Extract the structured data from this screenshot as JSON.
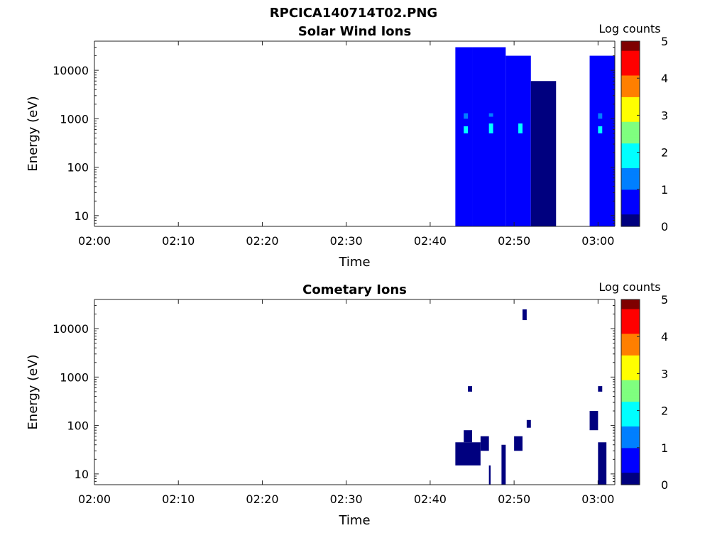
{
  "figure_title": "RPCICA140714T02.PNG",
  "colors": {
    "jet": [
      "#00007f",
      "#0000ff",
      "#007fff",
      "#00ffff",
      "#7fff7f",
      "#ffff00",
      "#ff7f00",
      "#ff0000",
      "#7f0000"
    ]
  },
  "chart_data": [
    {
      "type": "heatmap",
      "title": "Solar Wind Ions",
      "xlabel": "Time",
      "ylabel": "Energy (eV)",
      "yscale": "log",
      "ylim": [
        6,
        40000
      ],
      "xlim": [
        "02:00",
        "03:02"
      ],
      "x_ticks": [
        "02:00",
        "02:10",
        "02:20",
        "02:30",
        "02:40",
        "02:50",
        "03:00"
      ],
      "y_ticks": [
        10,
        100,
        1000,
        10000
      ],
      "y_tick_labels": [
        "10",
        "100",
        "1000",
        "10000"
      ],
      "colorbar": {
        "label": "Log counts",
        "min": 0,
        "max": 5,
        "ticks": [
          "0",
          "1",
          "2",
          "3",
          "4",
          "5"
        ]
      },
      "cells": [
        {
          "t0": "02:43",
          "t1": "02:45",
          "emin": 6,
          "emax": 30000,
          "value": 0.4
        },
        {
          "t0": "02:44",
          "t1": "02:44.5",
          "emin": 500,
          "emax": 700,
          "value": 1.8
        },
        {
          "t0": "02:44",
          "t1": "02:44.5",
          "emin": 1000,
          "emax": 1300,
          "value": 1.5
        },
        {
          "t0": "02:45",
          "t1": "02:49",
          "emin": 6,
          "emax": 30000,
          "value": 0.4
        },
        {
          "t0": "02:47",
          "t1": "02:47.5",
          "emin": 500,
          "emax": 800,
          "value": 2.0
        },
        {
          "t0": "02:47",
          "t1": "02:47.5",
          "emin": 1100,
          "emax": 1300,
          "value": 1.4
        },
        {
          "t0": "02:49",
          "t1": "02:52",
          "emin": 6,
          "emax": 20000,
          "value": 0.4
        },
        {
          "t0": "02:50.5",
          "t1": "02:51",
          "emin": 500,
          "emax": 800,
          "value": 1.6
        },
        {
          "t0": "02:52",
          "t1": "02:55",
          "emin": 6,
          "emax": 6000,
          "value": 0.1
        },
        {
          "t0": "02:59",
          "t1": "03:02",
          "emin": 6,
          "emax": 20000,
          "value": 0.4
        },
        {
          "t0": "03:00",
          "t1": "03:00.5",
          "emin": 500,
          "emax": 700,
          "value": 2.0
        },
        {
          "t0": "03:00",
          "t1": "03:00.5",
          "emin": 1000,
          "emax": 1300,
          "value": 1.3
        }
      ]
    },
    {
      "type": "heatmap",
      "title": "Cometary Ions",
      "xlabel": "Time",
      "ylabel": "Energy (eV)",
      "yscale": "log",
      "ylim": [
        6,
        40000
      ],
      "xlim": [
        "02:00",
        "03:02"
      ],
      "x_ticks": [
        "02:00",
        "02:10",
        "02:20",
        "02:30",
        "02:40",
        "02:50",
        "03:00"
      ],
      "y_ticks": [
        10,
        100,
        1000,
        10000
      ],
      "y_tick_labels": [
        "10",
        "100",
        "1000",
        "10000"
      ],
      "colorbar": {
        "label": "Log counts",
        "min": 0,
        "max": 5,
        "ticks": [
          "0",
          "1",
          "2",
          "3",
          "4",
          "5"
        ]
      },
      "cells": [
        {
          "t0": "02:43",
          "t1": "02:46",
          "emin": 15,
          "emax": 45,
          "value": 0.1
        },
        {
          "t0": "02:44",
          "t1": "02:45",
          "emin": 45,
          "emax": 80,
          "value": 0.1
        },
        {
          "t0": "02:44.5",
          "t1": "02:45",
          "emin": 500,
          "emax": 650,
          "value": 0.2
        },
        {
          "t0": "02:46",
          "t1": "02:47",
          "emin": 30,
          "emax": 60,
          "value": 0.1
        },
        {
          "t0": "02:47",
          "t1": "02:47.2",
          "emin": 6,
          "emax": 15,
          "value": 0.1
        },
        {
          "t0": "02:48.5",
          "t1": "02:49",
          "emin": 6,
          "emax": 40,
          "value": 0.1
        },
        {
          "t0": "02:50",
          "t1": "02:51",
          "emin": 30,
          "emax": 60,
          "value": 0.1
        },
        {
          "t0": "02:51.5",
          "t1": "02:52",
          "emin": 90,
          "emax": 130,
          "value": 0.1
        },
        {
          "t0": "02:59",
          "t1": "03:00",
          "emin": 80,
          "emax": 200,
          "value": 0.1
        },
        {
          "t0": "03:00",
          "t1": "03:01",
          "emin": 6,
          "emax": 45,
          "value": 0.1
        },
        {
          "t0": "03:00",
          "t1": "03:00.5",
          "emin": 500,
          "emax": 650,
          "value": 0.3
        },
        {
          "t0": "02:51",
          "t1": "02:51.5",
          "emin": 15000,
          "emax": 25000,
          "value": 0.2
        }
      ]
    }
  ]
}
